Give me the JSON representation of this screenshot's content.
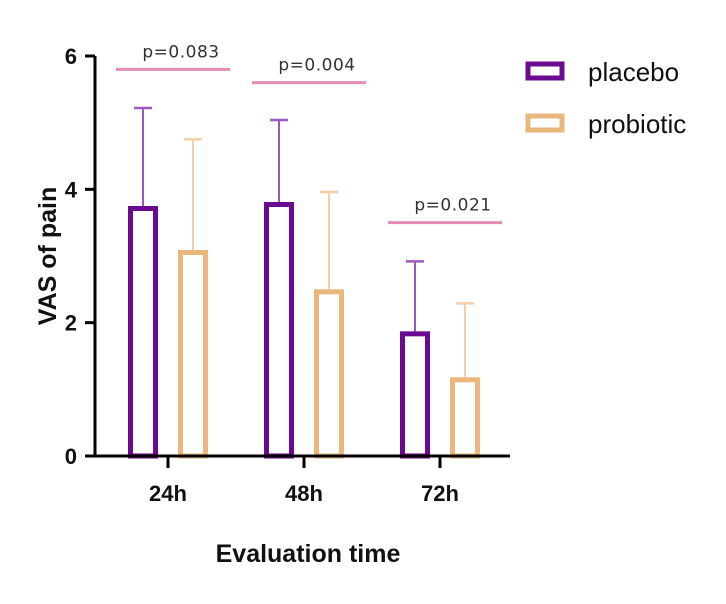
{
  "chart_data": {
    "type": "bar",
    "title": "",
    "xlabel": "Evaluation time",
    "ylabel": "VAS of pain",
    "ylim": [
      0,
      6
    ],
    "yticks": [
      0,
      2,
      4,
      6
    ],
    "categories": [
      "24h",
      "48h",
      "72h"
    ],
    "series": [
      {
        "name": "placebo",
        "color": "#6a0a8f",
        "error_color": "#9b59c0",
        "values": [
          3.75,
          3.81,
          1.87
        ],
        "error_upper": [
          5.22,
          5.04,
          2.92
        ]
      },
      {
        "name": "probiotic",
        "color": "#eab67c",
        "error_color": "#f2cfa6",
        "values": [
          3.09,
          2.5,
          1.18
        ],
        "error_upper": [
          4.75,
          3.96,
          2.29
        ]
      }
    ],
    "annotations": [
      {
        "category": "24h",
        "text": "p=0.083",
        "y": 5.8
      },
      {
        "category": "48h",
        "text": "p=0.004",
        "y": 5.6
      },
      {
        "category": "72h",
        "text": "p=0.021",
        "y": 3.5
      }
    ],
    "annotation_line_color": "#e58bb8",
    "legend_position": "top-right",
    "grid": false
  }
}
